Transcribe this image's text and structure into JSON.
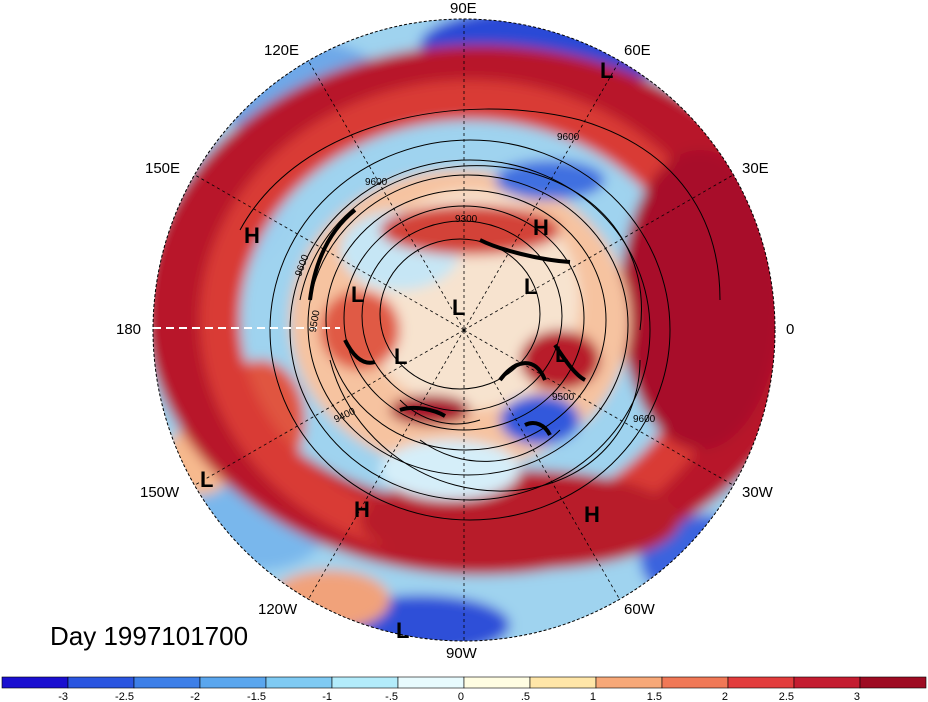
{
  "date_label": "Day 1997101700",
  "longitude_labels": [
    {
      "id": "lon-90e",
      "text": "90E"
    },
    {
      "id": "lon-60e",
      "text": "60E"
    },
    {
      "id": "lon-30e",
      "text": "30E"
    },
    {
      "id": "lon-0",
      "text": "0"
    },
    {
      "id": "lon-30w",
      "text": "30W"
    },
    {
      "id": "lon-60w",
      "text": "60W"
    },
    {
      "id": "lon-90w",
      "text": "90W"
    },
    {
      "id": "lon-120w",
      "text": "120W"
    },
    {
      "id": "lon-150w",
      "text": "150W"
    },
    {
      "id": "lon-180",
      "text": "180"
    },
    {
      "id": "lon-150e",
      "text": "150E"
    },
    {
      "id": "lon-120e",
      "text": "120E"
    }
  ],
  "pressure_markers": [
    {
      "id": "marker-l-1",
      "text": "L"
    },
    {
      "id": "marker-h-1",
      "text": "H"
    },
    {
      "id": "marker-h-2",
      "text": "H"
    },
    {
      "id": "marker-l-2",
      "text": "L"
    },
    {
      "id": "marker-l-3",
      "text": "L"
    },
    {
      "id": "marker-l-4",
      "text": "L"
    },
    {
      "id": "marker-l-5",
      "text": "L"
    },
    {
      "id": "marker-l-6",
      "text": "L"
    },
    {
      "id": "marker-l-7",
      "text": "L"
    },
    {
      "id": "marker-h-3",
      "text": "H"
    },
    {
      "id": "marker-h-4",
      "text": "H"
    },
    {
      "id": "marker-l-8",
      "text": "L"
    }
  ],
  "contour_labels": [
    {
      "id": "cl-9600a",
      "text": "9600"
    },
    {
      "id": "cl-9600b",
      "text": "9600"
    },
    {
      "id": "cl-9300",
      "text": "9300"
    },
    {
      "id": "cl-9600c",
      "text": "9600"
    },
    {
      "id": "cl-9500a",
      "text": "9500"
    },
    {
      "id": "cl-9500b",
      "text": "9500"
    },
    {
      "id": "cl-9600d",
      "text": "9600"
    },
    {
      "id": "cl-9400",
      "text": "9400"
    }
  ],
  "colorbar": {
    "colors": [
      "#1a0fd0",
      "#2a55e0",
      "#3d7fe8",
      "#5aa6ee",
      "#7fcaf3",
      "#b3ecfb",
      "#e8fbfe",
      "#fffde2",
      "#ffe6a8",
      "#f7a878",
      "#f07856",
      "#e23c3c",
      "#c41c30",
      "#9e0b22"
    ],
    "ticks": [
      "-3",
      "-2.5",
      "-2",
      "-1.5",
      "-1",
      "-.5",
      "0",
      ".5",
      "1",
      "1.5",
      "2",
      "2.5",
      "3"
    ]
  },
  "palette": {
    "strong_red": "#a50f24",
    "red": "#d93d3b",
    "orange": "#f3a47a",
    "cream": "#fdf0cf",
    "light_blue": "#a9dcf3",
    "blue": "#4f8fe0",
    "deep_blue": "#1f35cf"
  }
}
